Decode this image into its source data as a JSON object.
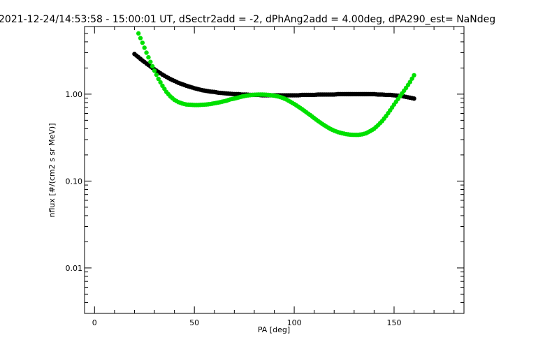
{
  "chart_data": {
    "type": "scatter",
    "title": "2021-12-24/14:53:58 - 15:00:01 UT, dSectr2add = -2, dPhAng2add = 4.00deg, dPA290_est=   NaNdeg",
    "xlabel": "PA [deg]",
    "ylabel": "nflux [#/(cm2 s sr MeV)]",
    "xlim": [
      -5,
      185
    ],
    "ylim": [
      0.003,
      6
    ],
    "yscale": "log",
    "x_ticks": [
      0,
      50,
      100,
      150
    ],
    "x_tick_labels": [
      "0",
      "50",
      "100",
      "150"
    ],
    "y_ticks": [
      1.0,
      0.1,
      0.01
    ],
    "y_tick_labels": [
      "1.00",
      "0.10",
      "0.01"
    ],
    "grid": false,
    "series": [
      {
        "color": "#000000",
        "x": [
          20,
          22,
          24,
          26,
          28,
          30,
          32,
          34,
          36,
          38,
          40,
          42,
          44,
          46,
          48,
          50,
          52,
          54,
          56,
          58,
          60,
          62,
          64,
          66,
          68,
          70,
          72,
          74,
          76,
          78,
          80,
          82,
          84,
          86,
          88,
          90,
          92,
          94,
          96,
          98,
          100,
          102,
          104,
          106,
          108,
          110,
          112,
          114,
          116,
          118,
          120,
          122,
          124,
          126,
          128,
          130,
          132,
          134,
          136,
          138,
          140,
          142,
          144,
          146,
          148,
          150,
          152,
          154,
          156,
          158,
          160
        ],
        "y": [
          2.9,
          2.66,
          2.44,
          2.25,
          2.08,
          1.93,
          1.8,
          1.68,
          1.58,
          1.49,
          1.42,
          1.35,
          1.3,
          1.25,
          1.21,
          1.17,
          1.14,
          1.11,
          1.09,
          1.07,
          1.06,
          1.04,
          1.03,
          1.02,
          1.01,
          1.0,
          1.0,
          0.99,
          0.99,
          0.98,
          0.98,
          0.98,
          0.97,
          0.97,
          0.97,
          0.97,
          0.97,
          0.97,
          0.97,
          0.97,
          0.97,
          0.97,
          0.98,
          0.98,
          0.98,
          0.98,
          0.99,
          0.99,
          0.99,
          0.99,
          0.99,
          1.0,
          1.0,
          1.0,
          1.0,
          1.0,
          1.0,
          1.0,
          1.0,
          1.0,
          1.0,
          0.99,
          0.99,
          0.98,
          0.98,
          0.97,
          0.96,
          0.95,
          0.93,
          0.91,
          0.89
        ]
      },
      {
        "color": "#00e000",
        "x": [
          22,
          24,
          26,
          28,
          30,
          32,
          34,
          36,
          38,
          40,
          42,
          44,
          46,
          48,
          50,
          52,
          54,
          56,
          58,
          60,
          62,
          64,
          66,
          68,
          70,
          72,
          74,
          76,
          78,
          80,
          82,
          84,
          86,
          88,
          90,
          92,
          94,
          96,
          98,
          100,
          102,
          104,
          106,
          108,
          110,
          112,
          114,
          116,
          118,
          120,
          122,
          124,
          126,
          128,
          130,
          132,
          134,
          136,
          138,
          140,
          142,
          144,
          146,
          148,
          150,
          152,
          154,
          156,
          158,
          160
        ],
        "y": [
          5.0,
          3.9,
          3.0,
          2.35,
          1.86,
          1.5,
          1.25,
          1.06,
          0.94,
          0.86,
          0.81,
          0.78,
          0.76,
          0.755,
          0.75,
          0.75,
          0.755,
          0.76,
          0.77,
          0.785,
          0.8,
          0.82,
          0.84,
          0.87,
          0.89,
          0.915,
          0.94,
          0.96,
          0.975,
          0.985,
          0.99,
          0.99,
          0.985,
          0.975,
          0.96,
          0.94,
          0.91,
          0.87,
          0.82,
          0.77,
          0.72,
          0.67,
          0.62,
          0.575,
          0.53,
          0.49,
          0.455,
          0.425,
          0.4,
          0.38,
          0.365,
          0.355,
          0.347,
          0.342,
          0.34,
          0.34,
          0.345,
          0.355,
          0.375,
          0.4,
          0.44,
          0.49,
          0.56,
          0.65,
          0.76,
          0.88,
          1.02,
          1.18,
          1.38,
          1.65
        ]
      }
    ]
  }
}
